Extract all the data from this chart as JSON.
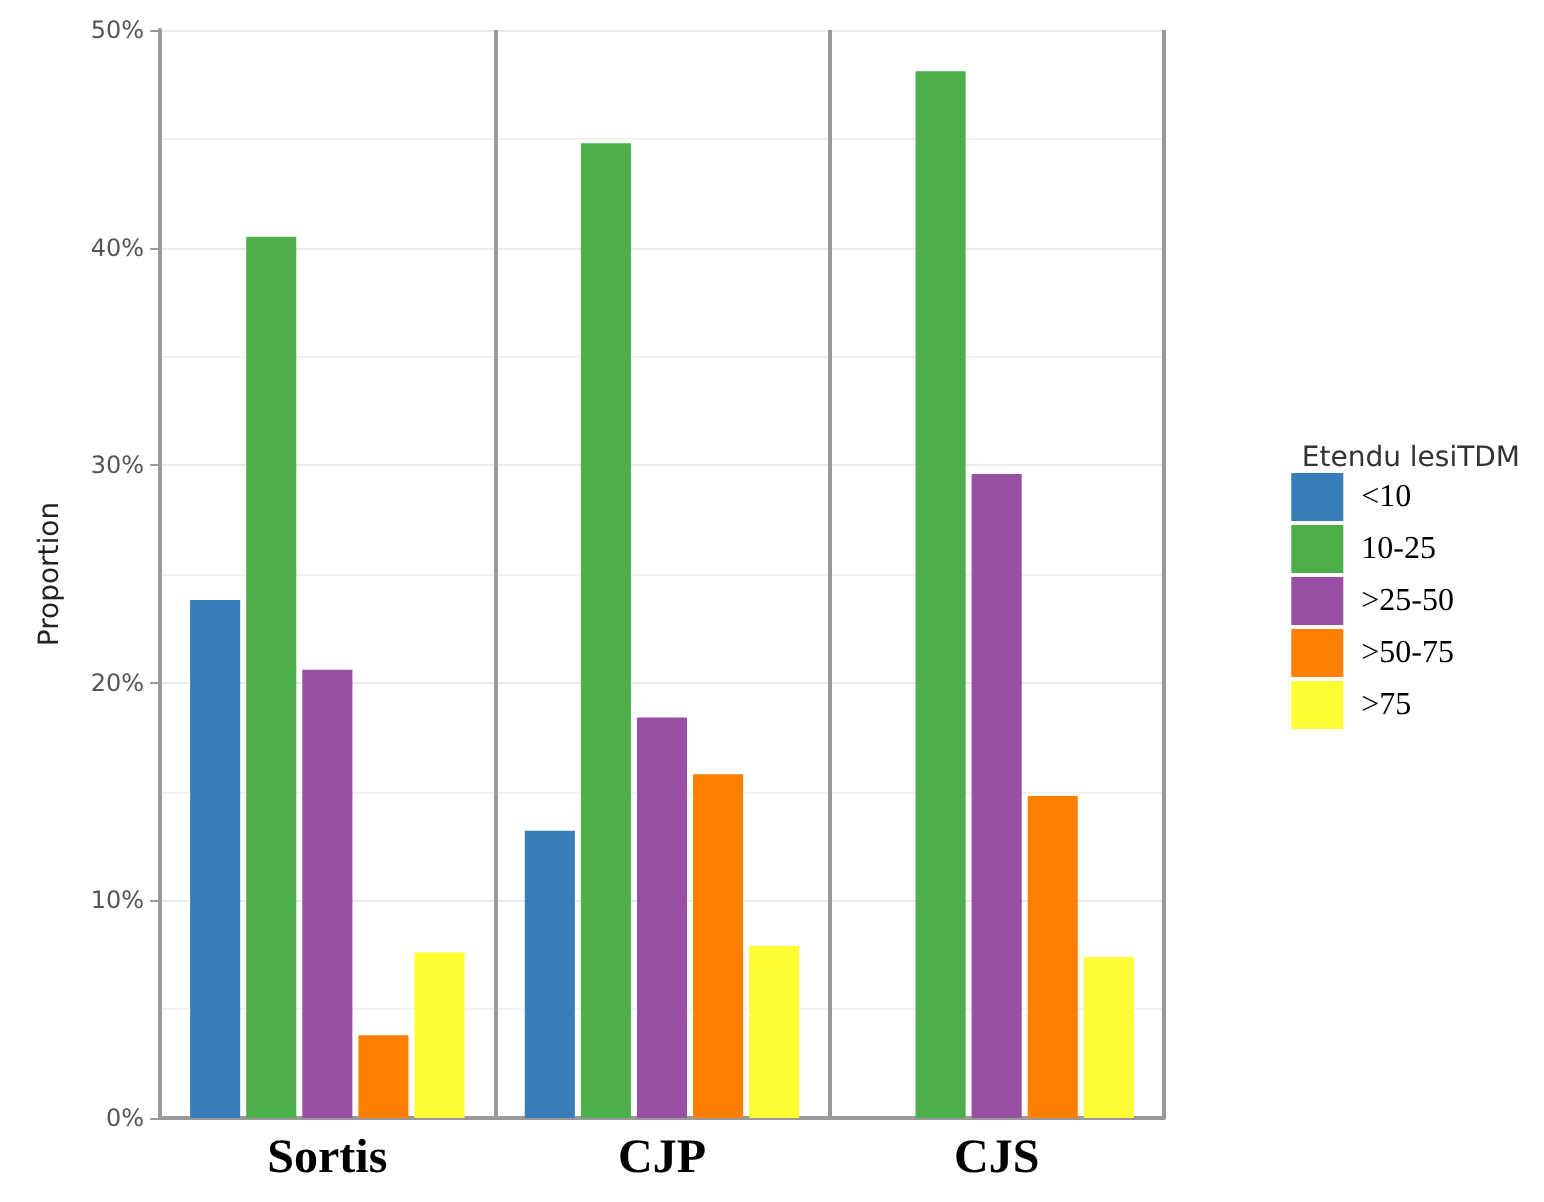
{
  "chart_data": {
    "type": "bar",
    "ylabel": "Proportion",
    "legend_title": "Etendu lesiTDM",
    "categories": [
      "Sortis",
      "CJP",
      "CJS"
    ],
    "series": [
      {
        "name": "<10",
        "color": "#377eb8",
        "values": [
          23.8,
          13.2,
          null
        ]
      },
      {
        "name": "10-25",
        "color": "#4daf4a",
        "values": [
          40.5,
          44.8,
          48.1
        ]
      },
      {
        "name": ">25-50",
        "color": "#984ea3",
        "values": [
          20.6,
          18.4,
          29.6
        ]
      },
      {
        "name": ">50-75",
        "color": "#ff7f00",
        "values": [
          3.8,
          15.8,
          14.8
        ]
      },
      {
        "name": ">75",
        "color": "#ffff33",
        "values": [
          7.6,
          7.9,
          7.4
        ]
      }
    ],
    "ylim": [
      0,
      50
    ],
    "yticks": [
      {
        "value": 0,
        "label": "0%"
      },
      {
        "value": 10,
        "label": "10%"
      },
      {
        "value": 20,
        "label": "20%"
      },
      {
        "value": 30,
        "label": "30%"
      },
      {
        "value": 40,
        "label": "40%"
      },
      {
        "value": 50,
        "label": "50%"
      }
    ],
    "grid": "y",
    "legend": "right"
  }
}
